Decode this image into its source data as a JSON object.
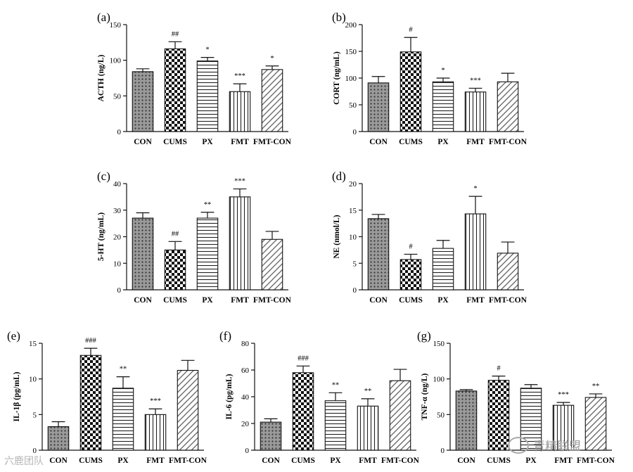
{
  "chart_data": [
    {
      "label": "(a)",
      "ylabel": "ACTH (ng/L)",
      "ylim": [
        0,
        150
      ],
      "ticks": [
        0,
        50,
        100,
        150
      ],
      "categories": [
        "CON",
        "CUMS",
        "PX",
        "FMT",
        "FMT-CON"
      ],
      "values": [
        84,
        116,
        99,
        56,
        87
      ],
      "errors": [
        4,
        10,
        5,
        11,
        5
      ],
      "annotations": [
        "",
        "##",
        "*",
        "***",
        "*"
      ],
      "type": "bar"
    },
    {
      "label": "(b)",
      "ylabel": "CORT (ng/mL)",
      "ylim": [
        0,
        200
      ],
      "ticks": [
        0,
        50,
        100,
        150,
        200
      ],
      "categories": [
        "CON",
        "CUMS",
        "PX",
        "FMT",
        "FMT-CON"
      ],
      "values": [
        91,
        149,
        93,
        74,
        93
      ],
      "errors": [
        12,
        27,
        7,
        7,
        16
      ],
      "annotations": [
        "",
        "#",
        "*",
        "***",
        ""
      ],
      "type": "bar"
    },
    {
      "label": "(c)",
      "ylabel": "5-HT (ng/mL)",
      "ylim": [
        0,
        40
      ],
      "ticks": [
        0,
        10,
        20,
        30,
        40
      ],
      "categories": [
        "CON",
        "CUMS",
        "PX",
        "FMT",
        "FMT-CON"
      ],
      "values": [
        27,
        15,
        27,
        35,
        19
      ],
      "errors": [
        2,
        3.2,
        2.2,
        3,
        3
      ],
      "annotations": [
        "",
        "##",
        "**",
        "***",
        ""
      ],
      "type": "bar"
    },
    {
      "label": "(d)",
      "ylabel": "NE (nmol/L)",
      "ylim": [
        0,
        20
      ],
      "ticks": [
        0,
        5,
        10,
        15,
        20
      ],
      "categories": [
        "CON",
        "CUMS",
        "PX",
        "FMT",
        "FMT-CON"
      ],
      "values": [
        13.4,
        5.7,
        7.8,
        14.3,
        6.9
      ],
      "errors": [
        0.8,
        1,
        1.5,
        3.3,
        2.1
      ],
      "annotations": [
        "",
        "#",
        "",
        "*",
        ""
      ],
      "type": "bar"
    },
    {
      "label": "(e)",
      "ylabel": "IL-1β (pg/mL)",
      "ylim": [
        0,
        15
      ],
      "ticks": [
        0,
        5,
        10,
        15
      ],
      "categories": [
        "CON",
        "CUMS",
        "PX",
        "FMT",
        "FMT-CON"
      ],
      "values": [
        3.3,
        13.3,
        8.7,
        5,
        11.2
      ],
      "errors": [
        0.7,
        1,
        1.6,
        0.8,
        1.4
      ],
      "annotations": [
        "",
        "###",
        "**",
        "***",
        ""
      ],
      "type": "bar"
    },
    {
      "label": "(f)",
      "ylabel": "IL-6 (pg/mL)",
      "ylim": [
        0,
        80
      ],
      "ticks": [
        0,
        20,
        40,
        60,
        80
      ],
      "categories": [
        "CON",
        "CUMS",
        "PX",
        "FMT",
        "FMT-CON"
      ],
      "values": [
        21,
        58,
        37,
        33,
        52
      ],
      "errors": [
        2.5,
        5,
        6,
        5.5,
        8.5
      ],
      "annotations": [
        "",
        "###",
        "**",
        "**",
        ""
      ],
      "type": "bar"
    },
    {
      "label": "(g)",
      "ylabel": "TNF-α (ng/L)",
      "ylim": [
        0,
        150
      ],
      "ticks": [
        0,
        50,
        100,
        150
      ],
      "categories": [
        "CON",
        "CUMS",
        "PX",
        "FMT",
        "FMT-CON"
      ],
      "values": [
        83,
        98,
        87,
        63,
        74
      ],
      "errors": [
        2,
        6,
        5,
        4,
        5
      ],
      "annotations": [
        "",
        "#",
        "",
        "***",
        "**"
      ],
      "type": "bar"
    }
  ],
  "watermark": {
    "text": "青精联盟",
    "bottom_left": "六鹿团队"
  }
}
